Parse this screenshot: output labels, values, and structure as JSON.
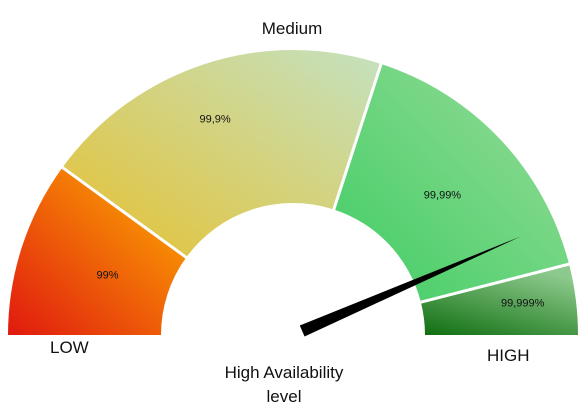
{
  "gauge": {
    "scale_labels": {
      "low": "LOW",
      "medium": "Medium",
      "high": "HIGH"
    },
    "caption_line1": "High Availability",
    "caption_line2": "level",
    "segments": [
      {
        "label": "99%",
        "start_fraction": 0.0,
        "end_fraction": 0.2
      },
      {
        "label": "99,9%",
        "start_fraction": 0.2,
        "end_fraction": 0.6
      },
      {
        "label": "99,99%",
        "start_fraction": 0.6,
        "end_fraction": 0.92
      },
      {
        "label": "99,999%",
        "start_fraction": 0.92,
        "end_fraction": 1.0
      }
    ],
    "needle_fraction": 0.87,
    "colors": {
      "segment_1": [
        "#e0190f",
        "#ffb300"
      ],
      "segment_2": [
        "#e2c43f",
        "#c6e0b9"
      ],
      "segment_3": [
        "#3fcd64",
        "#99dc99"
      ],
      "segment_4": [
        "#0f6e0f",
        "#8cc98c"
      ],
      "needle": "#000000",
      "divider": "#ffffff"
    }
  }
}
